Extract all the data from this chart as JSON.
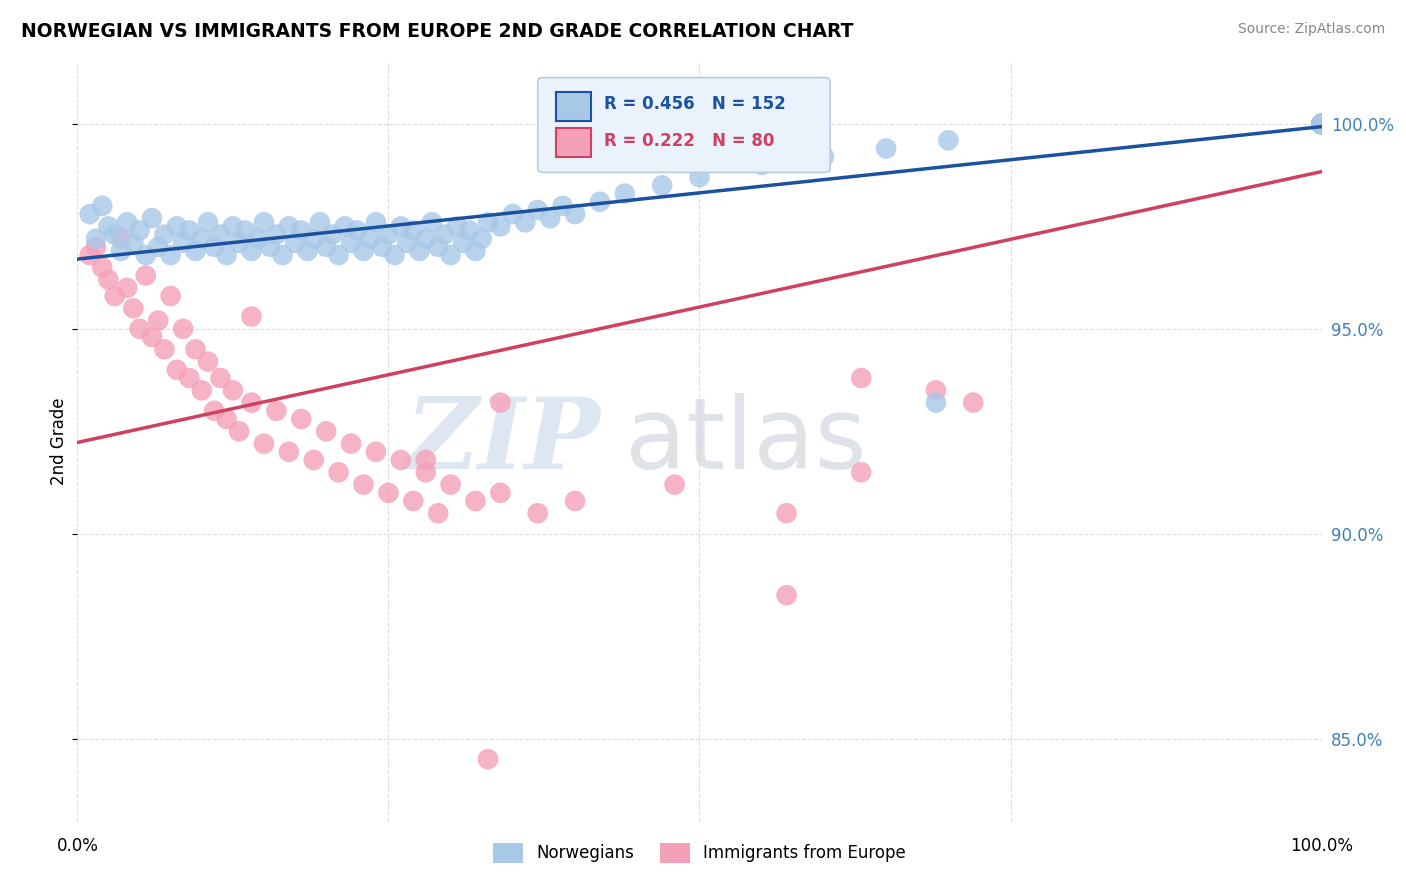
{
  "title": "NORWEGIAN VS IMMIGRANTS FROM EUROPE 2ND GRADE CORRELATION CHART",
  "source": "Source: ZipAtlas.com",
  "ylabel": "2nd Grade",
  "xlim": [
    0,
    100
  ],
  "ylim": [
    83.0,
    101.5
  ],
  "yticks": [
    85.0,
    90.0,
    95.0,
    100.0
  ],
  "xticks": [
    0,
    25,
    50,
    75,
    100
  ],
  "xtick_labels": [
    "0.0%",
    "",
    "",
    "",
    "100.0%"
  ],
  "right_ytick_labels": [
    "85.0%",
    "90.0%",
    "95.0%",
    "100.0%"
  ],
  "right_ytick_positions": [
    85.0,
    90.0,
    95.0,
    100.0
  ],
  "norwegians_x": [
    1.0,
    1.5,
    2.0,
    2.5,
    3.0,
    3.5,
    4.0,
    4.5,
    5.0,
    5.5,
    6.0,
    6.5,
    7.0,
    7.5,
    8.0,
    8.5,
    9.0,
    9.5,
    10.0,
    10.5,
    11.0,
    11.5,
    12.0,
    12.5,
    13.0,
    13.5,
    14.0,
    14.5,
    15.0,
    15.5,
    16.0,
    16.5,
    17.0,
    17.5,
    18.0,
    18.5,
    19.0,
    19.5,
    20.0,
    20.5,
    21.0,
    21.5,
    22.0,
    22.5,
    23.0,
    23.5,
    24.0,
    24.5,
    25.0,
    25.5,
    26.0,
    26.5,
    27.0,
    27.5,
    28.0,
    28.5,
    29.0,
    29.5,
    30.0,
    30.5,
    31.0,
    31.5,
    32.0,
    32.5,
    33.0,
    34.0,
    35.0,
    36.0,
    37.0,
    38.0,
    39.0,
    40.0,
    42.0,
    44.0,
    47.0,
    50.0,
    55.0,
    60.0,
    65.0,
    70.0,
    100.0,
    100.0,
    100.0,
    100.0,
    100.0,
    100.0,
    100.0,
    100.0,
    100.0,
    100.0,
    100.0,
    100.0,
    100.0,
    100.0,
    100.0,
    100.0,
    100.0,
    100.0,
    100.0,
    100.0,
    100.0,
    100.0,
    100.0,
    100.0,
    100.0,
    100.0,
    100.0,
    100.0,
    100.0,
    100.0,
    100.0,
    100.0,
    100.0,
    100.0,
    100.0,
    100.0,
    100.0,
    100.0,
    100.0,
    100.0,
    100.0,
    100.0,
    100.0,
    100.0,
    100.0,
    100.0,
    100.0,
    100.0,
    100.0,
    100.0,
    100.0,
    100.0,
    100.0,
    100.0,
    100.0,
    100.0,
    100.0,
    100.0,
    100.0,
    100.0,
    100.0,
    100.0,
    100.0,
    100.0,
    100.0,
    100.0,
    100.0,
    100.0,
    100.0,
    100.0,
    100.0,
    100.0
  ],
  "norwegians_y": [
    97.8,
    97.2,
    98.0,
    97.5,
    97.3,
    96.9,
    97.6,
    97.1,
    97.4,
    96.8,
    97.7,
    97.0,
    97.3,
    96.8,
    97.5,
    97.1,
    97.4,
    96.9,
    97.2,
    97.6,
    97.0,
    97.3,
    96.8,
    97.5,
    97.1,
    97.4,
    96.9,
    97.2,
    97.6,
    97.0,
    97.3,
    96.8,
    97.5,
    97.1,
    97.4,
    96.9,
    97.2,
    97.6,
    97.0,
    97.3,
    96.8,
    97.5,
    97.1,
    97.4,
    96.9,
    97.2,
    97.6,
    97.0,
    97.3,
    96.8,
    97.5,
    97.1,
    97.4,
    96.9,
    97.2,
    97.6,
    97.0,
    97.3,
    96.8,
    97.5,
    97.1,
    97.4,
    96.9,
    97.2,
    97.6,
    97.5,
    97.8,
    97.6,
    97.9,
    97.7,
    98.0,
    97.8,
    98.1,
    98.3,
    98.5,
    98.7,
    99.0,
    99.2,
    99.4,
    99.6,
    100.0,
    100.0,
    100.0,
    100.0,
    100.0,
    100.0,
    100.0,
    100.0,
    100.0,
    100.0,
    100.0,
    100.0,
    100.0,
    100.0,
    100.0,
    100.0,
    100.0,
    100.0,
    100.0,
    100.0,
    100.0,
    100.0,
    100.0,
    100.0,
    100.0,
    100.0,
    100.0,
    100.0,
    100.0,
    100.0,
    100.0,
    100.0,
    100.0,
    100.0,
    100.0,
    100.0,
    100.0,
    100.0,
    100.0,
    100.0,
    100.0,
    100.0,
    100.0,
    100.0,
    100.0,
    100.0,
    100.0,
    100.0,
    100.0,
    100.0,
    100.0,
    100.0,
    100.0,
    100.0,
    100.0,
    100.0,
    100.0,
    100.0,
    100.0,
    100.0,
    100.0,
    100.0,
    100.0,
    100.0,
    100.0,
    100.0,
    100.0,
    100.0,
    100.0,
    100.0,
    100.0,
    100.0
  ],
  "immigrants_x": [
    1.0,
    1.5,
    2.0,
    2.5,
    3.0,
    3.5,
    4.0,
    4.5,
    5.0,
    5.5,
    6.0,
    6.5,
    7.0,
    7.5,
    8.0,
    8.5,
    9.0,
    9.5,
    10.0,
    10.5,
    11.0,
    11.5,
    12.0,
    12.5,
    13.0,
    14.0,
    15.0,
    16.0,
    17.0,
    18.0,
    19.0,
    20.0,
    21.0,
    22.0,
    23.0,
    24.0,
    25.0,
    26.0,
    27.0,
    28.0,
    29.0,
    30.0,
    32.0,
    34.0,
    37.0,
    40.0,
    48.0,
    57.0,
    63.0,
    69.0,
    72.0,
    100.0,
    100.0,
    100.0,
    100.0,
    100.0,
    100.0,
    100.0,
    100.0,
    100.0,
    100.0,
    100.0,
    100.0,
    100.0,
    100.0,
    100.0,
    100.0,
    100.0,
    100.0,
    100.0,
    100.0,
    100.0,
    100.0,
    100.0,
    100.0,
    100.0,
    100.0,
    100.0,
    100.0,
    100.0
  ],
  "immigrants_y": [
    96.8,
    97.0,
    96.5,
    96.2,
    95.8,
    97.2,
    96.0,
    95.5,
    95.0,
    96.3,
    94.8,
    95.2,
    94.5,
    95.8,
    94.0,
    95.0,
    93.8,
    94.5,
    93.5,
    94.2,
    93.0,
    93.8,
    92.8,
    93.5,
    92.5,
    93.2,
    92.2,
    93.0,
    92.0,
    92.8,
    91.8,
    92.5,
    91.5,
    92.2,
    91.2,
    92.0,
    91.0,
    91.8,
    90.8,
    91.5,
    90.5,
    91.2,
    90.8,
    91.0,
    90.5,
    90.8,
    91.2,
    90.5,
    91.5,
    93.5,
    93.2,
    100.0,
    100.0,
    100.0,
    100.0,
    100.0,
    100.0,
    100.0,
    100.0,
    100.0,
    100.0,
    100.0,
    100.0,
    100.0,
    100.0,
    100.0,
    100.0,
    100.0,
    100.0,
    100.0,
    100.0,
    100.0,
    100.0,
    100.0,
    100.0,
    100.0,
    100.0,
    100.0,
    100.0,
    100.0
  ],
  "immigrants_outliers_x": [
    14.0,
    28.0,
    34.0,
    57.0,
    63.0,
    33.0
  ],
  "immigrants_outliers_y": [
    95.3,
    91.8,
    93.2,
    88.5,
    93.8,
    84.5
  ],
  "norwegian_outliers_x": [
    69.0
  ],
  "norwegian_outliers_y": [
    93.2
  ],
  "norwegian_color": "#a8c8e8",
  "immigrant_color": "#f4a0b8",
  "norwegian_line_color": "#1a52a0",
  "immigrant_line_color": "#d04060",
  "R_norwegian": 0.456,
  "N_norwegian": 152,
  "R_immigrant": 0.222,
  "N_immigrant": 80,
  "background_color": "#ffffff",
  "grid_color": "#dddddd",
  "right_tick_color": "#4080c0"
}
